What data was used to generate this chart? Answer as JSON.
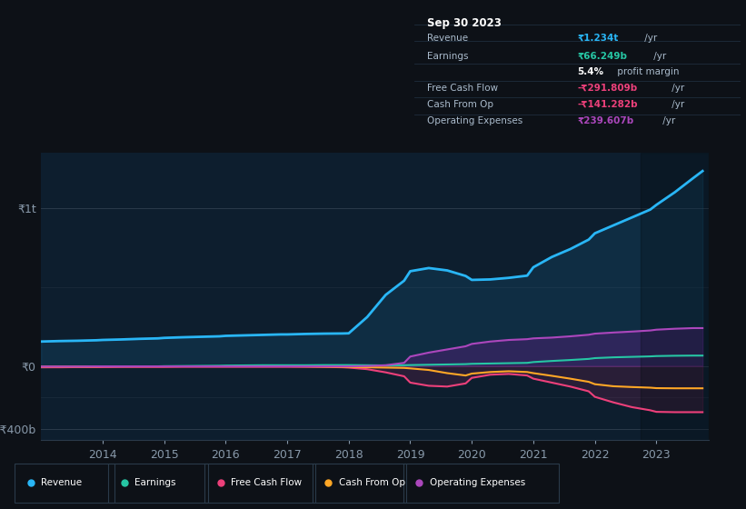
{
  "background_color": "#0d1117",
  "plot_bg_color": "#0d1e2e",
  "title_box_date": "Sep 30 2023",
  "yticks_labels": [
    "₹1t",
    "₹0",
    "-₹400b"
  ],
  "yticks_values": [
    1000,
    0,
    -400
  ],
  "xticks": [
    2014,
    2015,
    2016,
    2017,
    2018,
    2019,
    2020,
    2021,
    2022,
    2023
  ],
  "legend_items": [
    {
      "label": "Revenue",
      "color": "#29b6f6"
    },
    {
      "label": "Earnings",
      "color": "#26c6a4"
    },
    {
      "label": "Free Cash Flow",
      "color": "#ec407a"
    },
    {
      "label": "Cash From Op",
      "color": "#ffa726"
    },
    {
      "label": "Operating Expenses",
      "color": "#ab47bc"
    }
  ],
  "series": {
    "x": [
      2013.0,
      2013.3,
      2013.6,
      2013.9,
      2014.0,
      2014.3,
      2014.6,
      2014.9,
      2015.0,
      2015.3,
      2015.6,
      2015.9,
      2016.0,
      2016.3,
      2016.6,
      2016.9,
      2017.0,
      2017.3,
      2017.6,
      2017.9,
      2018.0,
      2018.3,
      2018.6,
      2018.9,
      2019.0,
      2019.3,
      2019.6,
      2019.9,
      2020.0,
      2020.3,
      2020.6,
      2020.9,
      2021.0,
      2021.3,
      2021.6,
      2021.9,
      2022.0,
      2022.3,
      2022.6,
      2022.9,
      2023.0,
      2023.3,
      2023.6,
      2023.75
    ],
    "revenue": [
      155,
      158,
      160,
      163,
      165,
      168,
      172,
      175,
      178,
      182,
      185,
      188,
      191,
      194,
      197,
      200,
      200,
      203,
      205,
      206,
      207,
      310,
      450,
      540,
      600,
      620,
      605,
      570,
      545,
      548,
      558,
      572,
      625,
      690,
      740,
      800,
      840,
      890,
      940,
      990,
      1020,
      1100,
      1190,
      1234
    ],
    "earnings": [
      -8,
      -7,
      -6,
      -5,
      -4,
      -3,
      -2,
      -2,
      -1,
      0,
      1,
      2,
      3,
      4,
      5,
      5,
      5,
      5,
      6,
      6,
      6,
      5,
      4,
      5,
      6,
      8,
      10,
      12,
      14,
      16,
      18,
      20,
      25,
      32,
      38,
      45,
      50,
      55,
      58,
      61,
      63,
      65,
      66,
      66
    ],
    "free_cash_flow": [
      -8,
      -8,
      -7,
      -7,
      -7,
      -6,
      -6,
      -6,
      -6,
      -5,
      -5,
      -5,
      -5,
      -5,
      -5,
      -5,
      -5,
      -5,
      -6,
      -8,
      -10,
      -20,
      -40,
      -65,
      -105,
      -125,
      -130,
      -110,
      -75,
      -55,
      -50,
      -60,
      -80,
      -105,
      -130,
      -160,
      -195,
      -230,
      -260,
      -280,
      -290,
      -292,
      -292,
      -292
    ],
    "cash_from_op": [
      -3,
      -3,
      -3,
      -3,
      -2,
      -2,
      -2,
      -2,
      -2,
      -2,
      -2,
      -2,
      -2,
      -2,
      -2,
      -2,
      -2,
      -3,
      -4,
      -5,
      -6,
      -8,
      -10,
      -12,
      -15,
      -25,
      -45,
      -60,
      -48,
      -38,
      -33,
      -38,
      -45,
      -62,
      -80,
      -100,
      -115,
      -128,
      -133,
      -137,
      -140,
      -141,
      -141,
      -141
    ],
    "operating_expenses": [
      -3,
      -3,
      -3,
      -2,
      -2,
      -2,
      -2,
      -2,
      -2,
      -2,
      -2,
      -2,
      -2,
      -2,
      -2,
      -2,
      -2,
      -2,
      -2,
      -2,
      -2,
      0,
      5,
      20,
      60,
      85,
      105,
      125,
      140,
      155,
      165,
      170,
      175,
      180,
      188,
      198,
      205,
      212,
      218,
      225,
      230,
      236,
      240,
      240
    ]
  }
}
